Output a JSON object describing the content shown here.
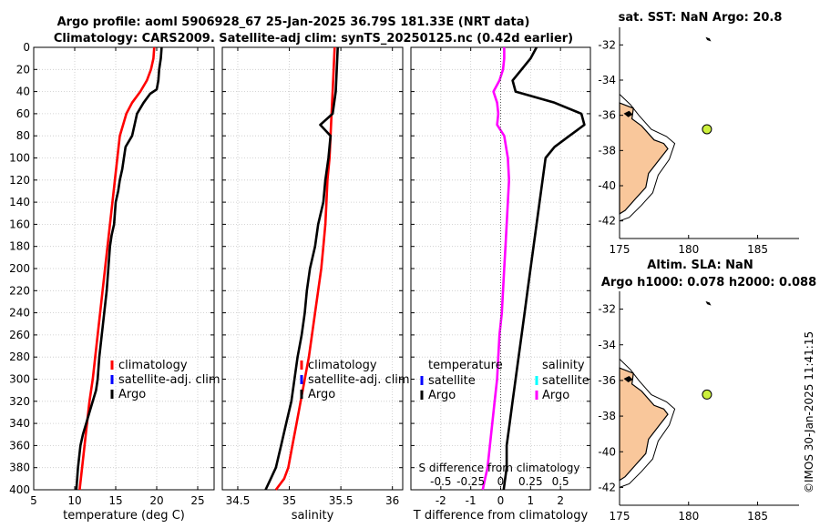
{
  "title": {
    "line1": "Argo profile: aoml 5906928_67 25-Jan-2025 36.79S 181.33E (NRT data)",
    "line2": "Climatology: CARS2009. Satellite-adj clim: synTS_20250125.nc (0.42d earlier)"
  },
  "stamp": "©IMOS 30-Jan-2025 11:41:15",
  "colors": {
    "climatology": "#ff0000",
    "satellite_adj": "#0000ff",
    "argo": "#000000",
    "satellite_s": "#00ffff",
    "salinity_diff": "#ff00ff",
    "land": "#f9c79b"
  },
  "chart_data": [
    {
      "id": "temperature",
      "type": "line",
      "xlabel": "temperature (deg C)",
      "xlim": [
        5,
        27
      ],
      "xticks": [
        5,
        10,
        15,
        20,
        25
      ],
      "ylim": [
        400,
        0
      ],
      "yticks": [
        0,
        20,
        40,
        60,
        80,
        100,
        120,
        140,
        160,
        180,
        200,
        220,
        240,
        260,
        280,
        300,
        320,
        340,
        360,
        380,
        400
      ],
      "legend": [
        "climatology",
        "satellite-adj. clim",
        "Argo"
      ],
      "series": [
        {
          "name": "climatology",
          "color": "#ff0000",
          "x": [
            19.7,
            19.6,
            19.3,
            18.8,
            18.0,
            17.0,
            16.3,
            15.9,
            15.5,
            15.2,
            14.9,
            14.6,
            14.3,
            14.0,
            13.7,
            13.4,
            13.1,
            12.8,
            12.5,
            12.2,
            11.8,
            11.5,
            11.2,
            10.9,
            10.6
          ],
          "y": [
            0,
            10,
            20,
            30,
            40,
            50,
            60,
            70,
            80,
            100,
            120,
            140,
            160,
            180,
            200,
            220,
            240,
            260,
            280,
            300,
            320,
            340,
            360,
            380,
            400
          ]
        },
        {
          "name": "Argo",
          "color": "#000000",
          "x": [
            20.6,
            20.5,
            20.3,
            20.2,
            20.0,
            19.2,
            18.4,
            17.6,
            17.3,
            17.0,
            16.2,
            16.0,
            15.8,
            15.5,
            15.3,
            15.0,
            14.9,
            14.8,
            14.5,
            14.3,
            14.1,
            13.9,
            13.6,
            13.3,
            13.0,
            12.8,
            12.6,
            12.2,
            11.8,
            11.4,
            11.0,
            10.7,
            10.4,
            10.2
          ],
          "y": [
            0,
            10,
            20,
            30,
            38,
            42,
            50,
            60,
            70,
            80,
            90,
            100,
            110,
            120,
            130,
            140,
            150,
            160,
            170,
            180,
            200,
            220,
            240,
            260,
            280,
            300,
            310,
            320,
            330,
            340,
            350,
            360,
            380,
            400
          ]
        }
      ]
    },
    {
      "id": "salinity",
      "type": "line",
      "xlabel": "salinity",
      "xlim": [
        34.35,
        36.1
      ],
      "xticks": [
        34.5,
        35,
        35.5,
        36
      ],
      "xticklabels": [
        "34.5",
        "35",
        "35.5",
        "36"
      ],
      "ylim": [
        400,
        0
      ],
      "legend": [
        "climatology",
        "satellite-adj. clim",
        "Argo"
      ],
      "series": [
        {
          "name": "climatology",
          "color": "#ff0000",
          "x": [
            35.44,
            35.43,
            35.42,
            35.41,
            35.4,
            35.39,
            35.37,
            35.36,
            35.35,
            35.33,
            35.31,
            35.28,
            35.25,
            35.22,
            35.19,
            35.15,
            35.11,
            35.07,
            35.03,
            34.99,
            34.95,
            34.91,
            34.87
          ],
          "y": [
            0,
            20,
            40,
            60,
            80,
            100,
            120,
            140,
            160,
            180,
            200,
            220,
            240,
            260,
            280,
            300,
            320,
            340,
            360,
            380,
            390,
            395,
            400
          ]
        },
        {
          "name": "Argo",
          "color": "#000000",
          "x": [
            35.47,
            35.46,
            35.45,
            35.42,
            35.3,
            35.4,
            35.38,
            35.35,
            35.33,
            35.28,
            35.25,
            35.2,
            35.17,
            35.15,
            35.12,
            35.08,
            35.05,
            35.02,
            34.97,
            34.92,
            34.87,
            34.82,
            34.77
          ],
          "y": [
            0,
            20,
            40,
            60,
            70,
            80,
            100,
            120,
            140,
            160,
            180,
            200,
            220,
            240,
            260,
            280,
            300,
            320,
            340,
            360,
            380,
            390,
            400
          ]
        }
      ]
    },
    {
      "id": "difference",
      "type": "line",
      "xlabel": "T difference from climatology",
      "xlabel_top": "S difference from climatology",
      "xlim": [
        -3.0,
        3.0
      ],
      "xticks": [
        -2,
        -1,
        0,
        1,
        2
      ],
      "xticks_top": [
        -0.5,
        -0.25,
        0,
        0.25,
        0.5
      ],
      "xticklabels_top": [
        "-0.5",
        "-0.25",
        "0",
        "0.25",
        "0.5"
      ],
      "ylim": [
        400,
        0
      ],
      "legend_left_title": "temperature",
      "legend_left": [
        "satellite",
        "Argo"
      ],
      "legend_right_title": "salinity",
      "legend_right": [
        "satellite",
        "Argo"
      ],
      "series": [
        {
          "name": "T Argo - clim",
          "color": "#000000",
          "x": [
            1.2,
            1.0,
            0.7,
            0.4,
            0.5,
            1.8,
            2.7,
            2.8,
            2.3,
            1.8,
            1.5,
            1.4,
            1.3,
            1.2,
            1.1,
            1.0,
            0.9,
            0.8,
            0.7,
            0.6,
            0.5,
            0.4,
            0.3,
            0.2,
            0.2,
            0.1
          ],
          "y": [
            0,
            10,
            20,
            30,
            40,
            50,
            60,
            70,
            80,
            90,
            100,
            120,
            140,
            160,
            180,
            200,
            220,
            240,
            260,
            280,
            300,
            320,
            340,
            360,
            380,
            400
          ]
        },
        {
          "name": "S Argo - clim",
          "color": "#ff00ff",
          "x": [
            0.03,
            0.03,
            0.02,
            -0.01,
            -0.06,
            -0.03,
            -0.02,
            -0.03,
            0.03,
            0.06,
            0.07,
            0.06,
            0.05,
            0.04,
            0.03,
            0.02,
            0.01,
            -0.01,
            -0.02,
            -0.03,
            -0.05,
            -0.07,
            -0.09,
            -0.11,
            -0.13,
            -0.15
          ],
          "y": [
            0,
            10,
            20,
            30,
            40,
            50,
            60,
            70,
            80,
            100,
            120,
            140,
            160,
            180,
            200,
            220,
            240,
            260,
            280,
            300,
            320,
            340,
            360,
            380,
            390,
            400
          ]
        }
      ]
    },
    {
      "id": "sst-map",
      "type": "map",
      "title": "sat. SST: NaN Argo: 20.8",
      "xlim": [
        175,
        188
      ],
      "xticks": [
        175,
        180,
        185
      ],
      "ylim": [
        -43,
        -31
      ],
      "yticks": [
        -32,
        -34,
        -36,
        -38,
        -40,
        -42
      ],
      "marker": {
        "lon": 181.33,
        "lat": -36.79,
        "color": "#ccf03c"
      }
    },
    {
      "id": "sla-map",
      "type": "map",
      "title": "Altim. SLA: NaN",
      "subtitle": "Argo h1000: 0.078 h2000: 0.088",
      "xlim": [
        175,
        188
      ],
      "xticks": [
        175,
        180,
        185
      ],
      "ylim": [
        -43,
        -31
      ],
      "yticks": [
        -32,
        -34,
        -36,
        -38,
        -40,
        -42
      ],
      "marker": {
        "lon": 181.33,
        "lat": -36.79,
        "color": "#ccf03c"
      }
    }
  ]
}
